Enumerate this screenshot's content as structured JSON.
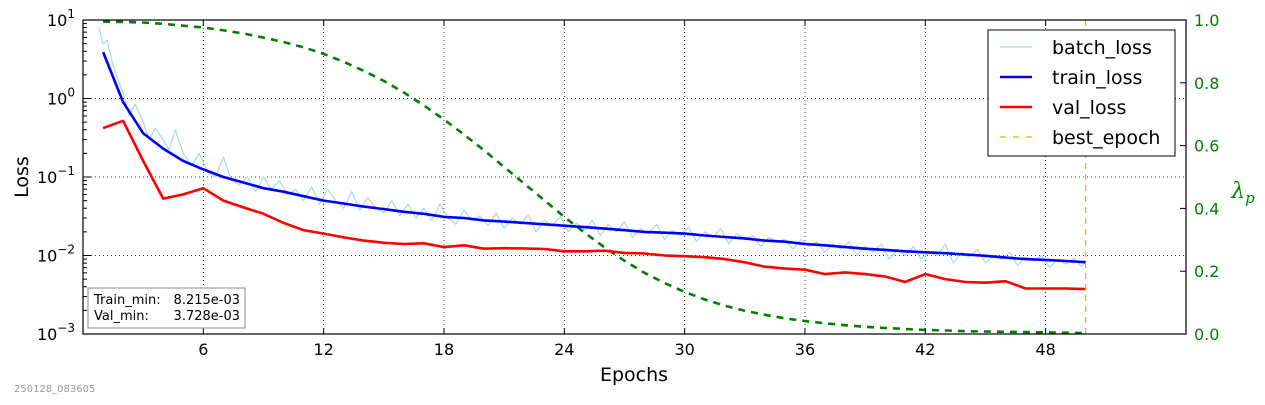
{
  "chart_data": {
    "type": "line",
    "xlabel": "Epochs",
    "ylabel": "Loss",
    "y2label": "λp",
    "xlim": [
      0,
      55
    ],
    "ylim": [
      0.001,
      10
    ],
    "yscale": "log",
    "y2lim": [
      0.0,
      1.0
    ],
    "grid": true,
    "legend_position": "top-right",
    "x_ticks": [
      6,
      12,
      18,
      24,
      30,
      36,
      42,
      48
    ],
    "x_tick_labels": [
      "6",
      "12",
      "18",
      "24",
      "30",
      "36",
      "42",
      "48"
    ],
    "y_ticks": [
      0.001,
      0.01,
      0.1,
      1,
      10
    ],
    "y_tick_labels": [
      {
        "base": "10",
        "exp": "−3"
      },
      {
        "base": "10",
        "exp": "−2"
      },
      {
        "base": "10",
        "exp": "−1"
      },
      {
        "base": "10",
        "exp": "0"
      },
      {
        "base": "10",
        "exp": "1"
      }
    ],
    "y2_ticks": [
      0.0,
      0.2,
      0.4,
      0.6,
      0.8,
      1.0
    ],
    "y2_tick_labels": [
      "0.0",
      "0.2",
      "0.4",
      "0.6",
      "0.8",
      "1.0"
    ],
    "series": [
      {
        "name": "batch_loss",
        "color": "#add8e6",
        "axis": "left",
        "x": [
          0.8,
          1.0,
          1.2,
          1.5,
          1.8,
          2.0,
          2.3,
          2.6,
          3.0,
          3.3,
          3.6,
          4.0,
          4.3,
          4.6,
          5.0,
          5.4,
          5.8,
          6.2,
          6.6,
          7.0,
          7.4,
          7.8,
          8.2,
          8.6,
          9.0,
          9.4,
          9.8,
          10.2,
          10.6,
          11.0,
          11.4,
          11.8,
          12.2,
          12.6,
          13.0,
          13.4,
          13.8,
          14.2,
          14.6,
          15.0,
          15.4,
          15.8,
          16.2,
          16.6,
          17.0,
          17.4,
          17.8,
          18.2,
          18.6,
          19.0,
          19.4,
          19.8,
          20.2,
          20.6,
          21.0,
          21.4,
          21.8,
          22.2,
          22.6,
          23.0,
          23.4,
          23.8,
          24.2,
          24.6,
          25.0,
          25.4,
          25.8,
          26.2,
          26.6,
          27.0,
          27.4,
          27.8,
          28.2,
          28.6,
          29.0,
          29.4,
          29.8,
          30.2,
          30.6,
          31.0,
          31.4,
          31.8,
          32.2,
          32.6,
          33.0,
          33.4,
          33.8,
          34.2,
          34.6,
          35.0,
          35.4,
          35.8,
          36.2,
          36.6,
          37.0,
          37.4,
          37.8,
          38.2,
          38.6,
          39.0,
          39.4,
          39.8,
          40.2,
          40.6,
          41.0,
          41.4,
          41.8,
          42.2,
          42.6,
          43.0,
          43.4,
          43.8,
          44.2,
          44.6,
          45.0,
          45.4,
          45.8,
          46.2,
          46.6,
          47.0,
          47.4,
          47.8,
          48.2,
          48.6,
          49.0,
          49.4,
          49.8,
          50.0
        ],
        "values": [
          8.0,
          5.0,
          5.5,
          2.6,
          1.6,
          1.2,
          0.6,
          0.85,
          0.5,
          0.3,
          0.42,
          0.3,
          0.22,
          0.4,
          0.2,
          0.14,
          0.2,
          0.12,
          0.1,
          0.18,
          0.09,
          0.08,
          0.1,
          0.065,
          0.1,
          0.07,
          0.09,
          0.06,
          0.07,
          0.05,
          0.075,
          0.045,
          0.07,
          0.05,
          0.04,
          0.065,
          0.038,
          0.055,
          0.04,
          0.035,
          0.05,
          0.032,
          0.045,
          0.03,
          0.04,
          0.028,
          0.045,
          0.03,
          0.025,
          0.038,
          0.028,
          0.032,
          0.024,
          0.035,
          0.022,
          0.03,
          0.025,
          0.033,
          0.02,
          0.028,
          0.024,
          0.031,
          0.02,
          0.026,
          0.021,
          0.028,
          0.018,
          0.025,
          0.02,
          0.027,
          0.017,
          0.022,
          0.019,
          0.025,
          0.016,
          0.021,
          0.018,
          0.023,
          0.015,
          0.02,
          0.017,
          0.022,
          0.014,
          0.019,
          0.016,
          0.018,
          0.013,
          0.017,
          0.015,
          0.016,
          0.012,
          0.016,
          0.013,
          0.015,
          0.011,
          0.014,
          0.012,
          0.015,
          0.01,
          0.013,
          0.011,
          0.014,
          0.009,
          0.012,
          0.01,
          0.013,
          0.009,
          0.011,
          0.01,
          0.014,
          0.008,
          0.011,
          0.0095,
          0.012,
          0.008,
          0.01,
          0.009,
          0.011,
          0.0075,
          0.0095,
          0.0085,
          0.01,
          0.007,
          0.009,
          0.0078,
          0.0092,
          0.0072,
          0.0085
        ]
      },
      {
        "name": "train_loss",
        "color": "#0000ff",
        "axis": "left",
        "x": [
          1,
          2,
          3,
          4,
          5,
          6,
          7,
          8,
          9,
          10,
          11,
          12,
          13,
          14,
          15,
          16,
          17,
          18,
          19,
          20,
          21,
          22,
          23,
          24,
          25,
          26,
          27,
          28,
          29,
          30,
          31,
          32,
          33,
          34,
          35,
          36,
          37,
          38,
          39,
          40,
          41,
          42,
          43,
          44,
          45,
          46,
          47,
          48,
          49,
          50
        ],
        "values": [
          3.9,
          0.9,
          0.36,
          0.23,
          0.16,
          0.125,
          0.1,
          0.085,
          0.072,
          0.065,
          0.057,
          0.05,
          0.046,
          0.042,
          0.039,
          0.036,
          0.034,
          0.031,
          0.03,
          0.028,
          0.027,
          0.026,
          0.025,
          0.024,
          0.023,
          0.022,
          0.021,
          0.02,
          0.0195,
          0.019,
          0.018,
          0.0172,
          0.0165,
          0.0155,
          0.015,
          0.014,
          0.0135,
          0.0128,
          0.0122,
          0.0118,
          0.0113,
          0.011,
          0.0107,
          0.0103,
          0.0099,
          0.0094,
          0.009,
          0.0088,
          0.0085,
          0.008215
        ]
      },
      {
        "name": "val_loss",
        "color": "#ff0000",
        "axis": "left",
        "x": [
          1,
          2,
          3,
          4,
          5,
          6,
          7,
          8,
          9,
          10,
          11,
          12,
          13,
          14,
          15,
          16,
          17,
          18,
          19,
          20,
          21,
          22,
          23,
          24,
          25,
          26,
          27,
          28,
          29,
          30,
          31,
          32,
          33,
          34,
          35,
          36,
          37,
          38,
          39,
          40,
          41,
          42,
          43,
          44,
          45,
          46,
          47,
          48,
          49,
          50
        ],
        "values": [
          0.42,
          0.52,
          0.16,
          0.053,
          0.06,
          0.072,
          0.05,
          0.041,
          0.034,
          0.026,
          0.021,
          0.019,
          0.017,
          0.0155,
          0.0145,
          0.014,
          0.0143,
          0.0128,
          0.0135,
          0.0122,
          0.0124,
          0.0123,
          0.0121,
          0.0113,
          0.0113,
          0.0115,
          0.0108,
          0.0106,
          0.01,
          0.0098,
          0.0095,
          0.009,
          0.0082,
          0.0072,
          0.0068,
          0.0066,
          0.0058,
          0.0061,
          0.0058,
          0.0054,
          0.0046,
          0.0058,
          0.005,
          0.0046,
          0.0045,
          0.0047,
          0.0038,
          0.0038,
          0.0038,
          0.003728
        ]
      },
      {
        "name": "",
        "color": "#008000",
        "axis": "right",
        "x": [
          1,
          2,
          3,
          4,
          5,
          6,
          7,
          8,
          9,
          10,
          11,
          12,
          13,
          14,
          15,
          16,
          17,
          18,
          19,
          20,
          21,
          22,
          23,
          24,
          25,
          26,
          27,
          28,
          29,
          30,
          31,
          32,
          33,
          34,
          35,
          36,
          37,
          38,
          39,
          40,
          41,
          42,
          43,
          44,
          45,
          46,
          47,
          48,
          49,
          50
        ],
        "values": [
          0.995,
          0.994,
          0.992,
          0.988,
          0.982,
          0.976,
          0.967,
          0.957,
          0.944,
          0.93,
          0.913,
          0.892,
          0.867,
          0.838,
          0.806,
          0.769,
          0.728,
          0.683,
          0.635,
          0.585,
          0.532,
          0.479,
          0.426,
          0.373,
          0.323,
          0.276,
          0.233,
          0.195,
          0.162,
          0.134,
          0.11,
          0.09,
          0.074,
          0.061,
          0.05,
          0.041,
          0.034,
          0.028,
          0.023,
          0.019,
          0.016,
          0.013,
          0.011,
          0.009,
          0.008,
          0.007,
          0.006,
          0.005,
          0.004,
          0.003
        ]
      },
      {
        "name": "best_epoch",
        "color": "#ffa500",
        "axis": "right",
        "x": [
          50,
          50
        ],
        "values": [
          0.0,
          1.0
        ]
      }
    ],
    "stats": {
      "train_min_label": "Train_min:",
      "train_min_value": "8.215e-03",
      "val_min_label": "Val_min:",
      "val_min_value": "3.728e-03"
    },
    "stamp": "250128_083605"
  }
}
